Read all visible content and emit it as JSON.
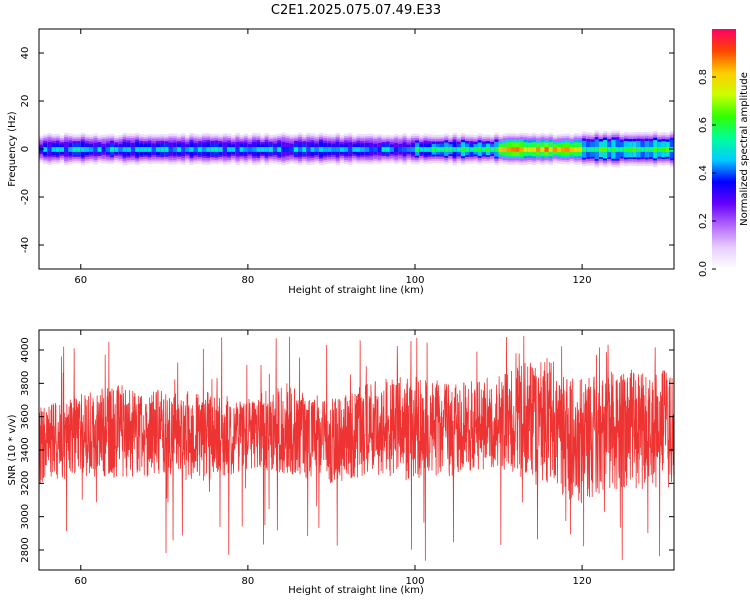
{
  "title": "C2E1.2025.075.07.49.E33",
  "chart_data": [
    {
      "type": "heatmap",
      "xlabel": "Height of straight line (km)",
      "ylabel": "Frequency (Hz)",
      "xlim": [
        55,
        131
      ],
      "ylim": [
        -50,
        50
      ],
      "xticks": [
        60,
        80,
        100,
        120
      ],
      "yticks": [
        -40,
        -20,
        0,
        20,
        40
      ],
      "band_center_hz": 0,
      "band_segments": [
        {
          "x_start": 55,
          "x_end": 100,
          "core_amplitude": 0.45,
          "halfwidth_hz": 4
        },
        {
          "x_start": 100,
          "x_end": 110,
          "core_amplitude": 0.55,
          "halfwidth_hz": 4
        },
        {
          "x_start": 110,
          "x_end": 120,
          "core_amplitude": 0.85,
          "halfwidth_hz": 4
        },
        {
          "x_start": 120,
          "x_end": 131,
          "core_amplitude": 0.6,
          "halfwidth_hz": 5
        }
      ],
      "colorbar": {
        "label": "Normalized spectral amplitude",
        "range": [
          0.0,
          1.0
        ],
        "ticks": [
          0.0,
          0.2,
          0.4,
          0.6,
          0.8
        ],
        "colors": [
          "#ffffff",
          "#e6ccff",
          "#b366ff",
          "#6600ff",
          "#0000ff",
          "#00ccff",
          "#00ff99",
          "#33ff00",
          "#ccff00",
          "#ffcc00",
          "#ff4400",
          "#ff0066"
        ]
      }
    },
    {
      "type": "line",
      "xlabel": "Height of straight line (km)",
      "ylabel": "SNR (10 * v/v)",
      "xlim": [
        55,
        131
      ],
      "ylim": [
        2680,
        4120
      ],
      "xticks": [
        60,
        80,
        100,
        120
      ],
      "yticks": [
        2800,
        3000,
        3200,
        3400,
        3600,
        3800,
        4000
      ],
      "series": [
        {
          "color": "#ee3333",
          "x_start": 55,
          "x_end": 131,
          "mean": 3450,
          "approx_min": 2680,
          "approx_max": 4120,
          "envelope": [
            {
              "x": 55,
              "low": 3150,
              "high": 3700
            },
            {
              "x": 60,
              "low": 3200,
              "high": 3780
            },
            {
              "x": 65,
              "low": 3180,
              "high": 3850
            },
            {
              "x": 70,
              "low": 3200,
              "high": 3800
            },
            {
              "x": 75,
              "low": 3150,
              "high": 3800
            },
            {
              "x": 80,
              "low": 3250,
              "high": 3750
            },
            {
              "x": 85,
              "low": 3200,
              "high": 3860
            },
            {
              "x": 90,
              "low": 3150,
              "high": 3750
            },
            {
              "x": 95,
              "low": 3200,
              "high": 3880
            },
            {
              "x": 100,
              "low": 3150,
              "high": 3900
            },
            {
              "x": 105,
              "low": 3200,
              "high": 3850
            },
            {
              "x": 110,
              "low": 3250,
              "high": 3900
            },
            {
              "x": 115,
              "low": 3100,
              "high": 4050
            },
            {
              "x": 120,
              "low": 3000,
              "high": 3900
            },
            {
              "x": 125,
              "low": 3100,
              "high": 3950
            },
            {
              "x": 131,
              "low": 3100,
              "high": 3950
            }
          ]
        }
      ]
    }
  ]
}
